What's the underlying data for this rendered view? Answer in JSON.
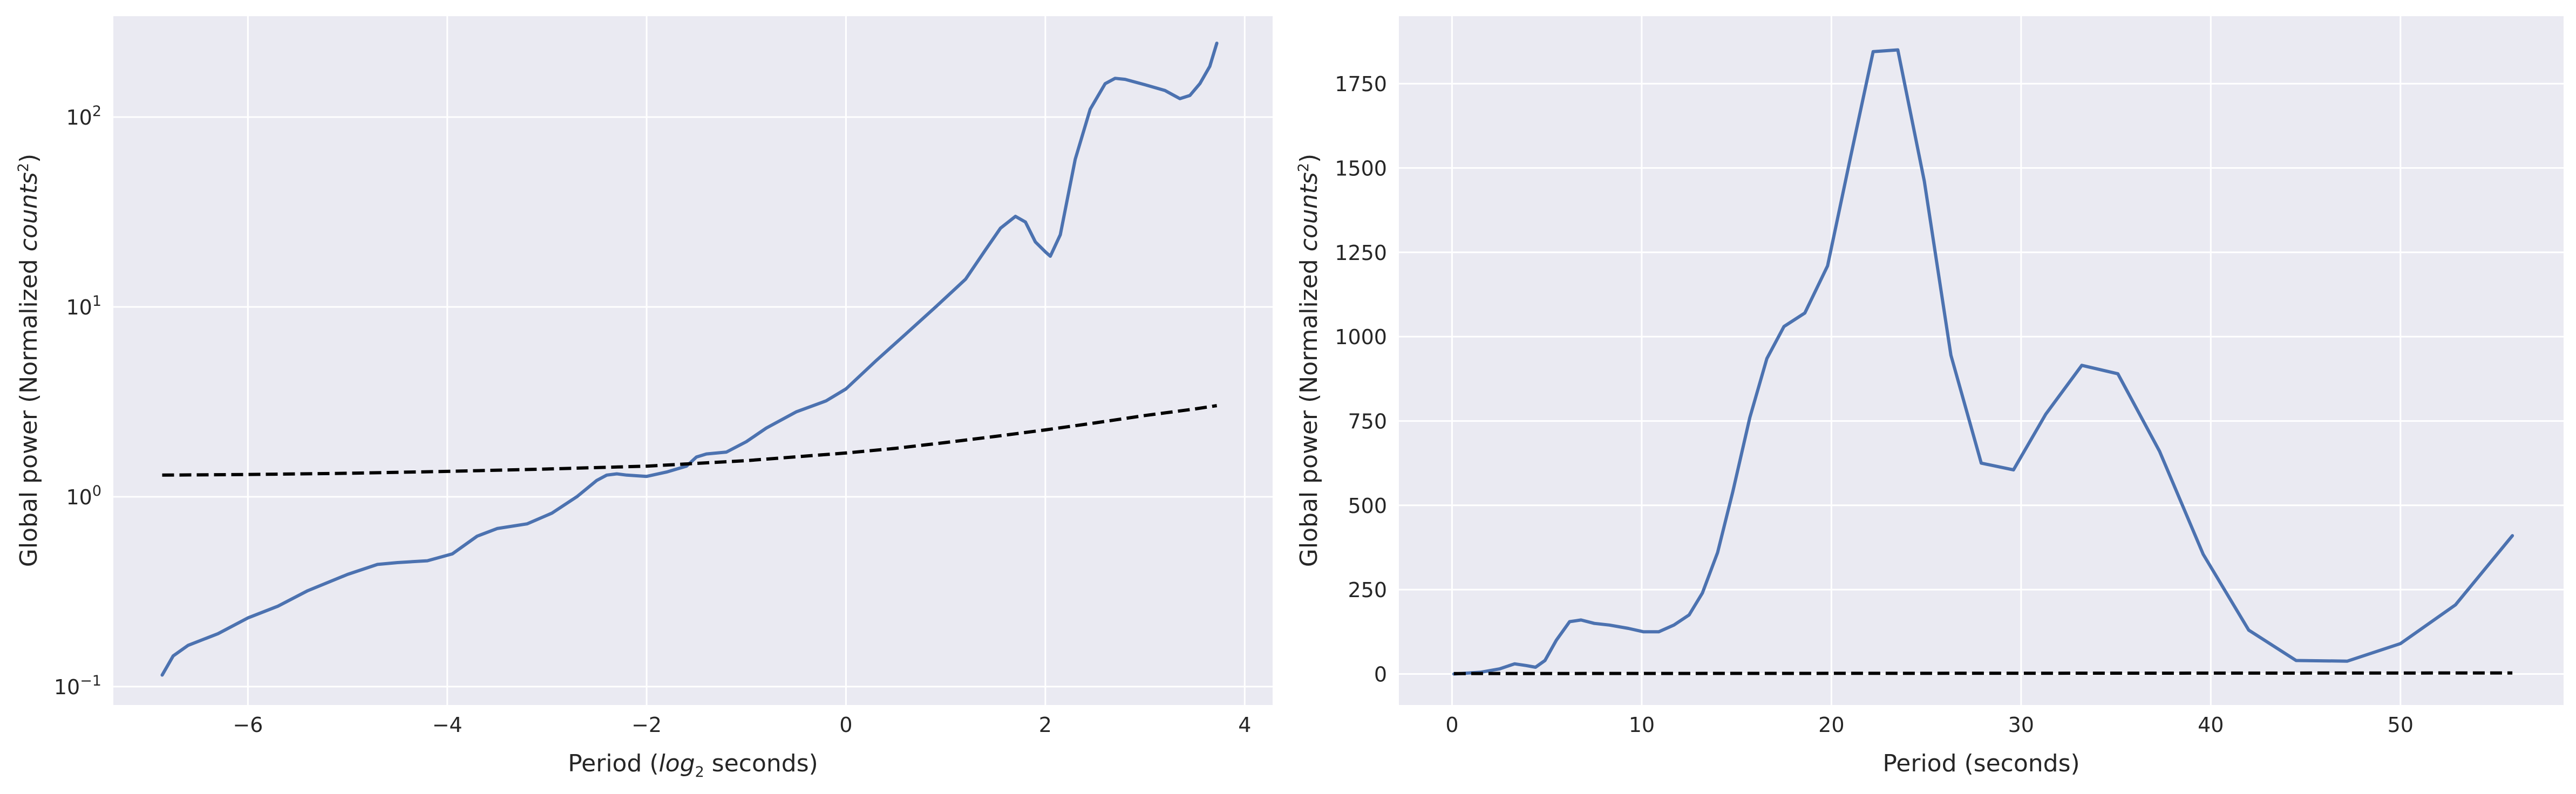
{
  "chart_data": [
    {
      "type": "line",
      "title": "",
      "xlabel": "Period (log2 seconds)",
      "xlabel_parts": {
        "pre": "Period (",
        "math": "log",
        "sub": "2",
        "post": " seconds)"
      },
      "ylabel": "Global power (Normalized counts²)",
      "ylabel_parts": {
        "pre": "Global power (Normalized ",
        "math": "counts",
        "sup": "2",
        "post": ")"
      },
      "yscale": "log",
      "xlim": [
        -7.35,
        4.28
      ],
      "ylim": [
        0.08,
        340
      ],
      "xticks": [
        -6,
        -4,
        -2,
        0,
        2,
        4
      ],
      "xtick_labels": [
        "−6",
        "−4",
        "−2",
        "0",
        "2",
        "4"
      ],
      "yticks": [
        0.1,
        1,
        10,
        100
      ],
      "ytick_labels": [
        {
          "base": "10",
          "exp": "−1"
        },
        {
          "base": "10",
          "exp": "0"
        },
        {
          "base": "10",
          "exp": "1"
        },
        {
          "base": "10",
          "exp": "2"
        }
      ],
      "grid": true,
      "background": "#eaeaf2",
      "series": [
        {
          "style": "solid",
          "color": "#4c72b0",
          "x": [
            -6.86,
            -6.75,
            -6.6,
            -6.3,
            -6.0,
            -5.7,
            -5.4,
            -5.0,
            -4.7,
            -4.5,
            -4.2,
            -3.95,
            -3.7,
            -3.5,
            -3.2,
            -2.95,
            -2.7,
            -2.5,
            -2.4,
            -2.3,
            -2.2,
            -2.0,
            -1.8,
            -1.6,
            -1.5,
            -1.4,
            -1.2,
            -1.0,
            -0.8,
            -0.5,
            -0.2,
            0.0,
            0.3,
            0.6,
            0.9,
            1.2,
            1.4,
            1.55,
            1.7,
            1.8,
            1.9,
            2.0,
            2.05,
            2.15,
            2.3,
            2.45,
            2.6,
            2.7,
            2.8,
            3.0,
            3.2,
            3.35,
            3.45,
            3.55,
            3.65,
            3.72
          ],
          "y": [
            0.115,
            0.145,
            0.165,
            0.19,
            0.23,
            0.265,
            0.32,
            0.39,
            0.44,
            0.45,
            0.46,
            0.5,
            0.62,
            0.68,
            0.72,
            0.82,
            1.0,
            1.22,
            1.3,
            1.32,
            1.3,
            1.28,
            1.35,
            1.45,
            1.62,
            1.68,
            1.72,
            1.95,
            2.3,
            2.8,
            3.2,
            3.7,
            5.2,
            7.2,
            10.0,
            14.0,
            20.0,
            26.0,
            30.0,
            28.0,
            22.0,
            19.5,
            18.5,
            24.0,
            60.0,
            110.0,
            150.0,
            160.0,
            158.0,
            148.0,
            138.0,
            125.0,
            130.0,
            150.0,
            185.0,
            245.0
          ]
        },
        {
          "style": "dashed",
          "color": "#000000",
          "x": [
            -6.86,
            -6.0,
            -5.0,
            -4.0,
            -3.0,
            -2.0,
            -1.0,
            0.0,
            0.5,
            1.0,
            1.5,
            2.0,
            2.5,
            3.0,
            3.5,
            3.72
          ],
          "y": [
            1.3,
            1.31,
            1.33,
            1.36,
            1.4,
            1.45,
            1.55,
            1.7,
            1.8,
            1.93,
            2.08,
            2.25,
            2.45,
            2.68,
            2.9,
            3.02
          ]
        }
      ]
    },
    {
      "type": "line",
      "title": "",
      "xlabel": "Period (seconds)",
      "ylabel": "Global power (Normalized counts²)",
      "ylabel_parts": {
        "pre": "Global power (Normalized ",
        "math": "counts",
        "sup": "2",
        "post": ")"
      },
      "yscale": "linear",
      "xlim": [
        -2.8,
        58.6
      ],
      "ylim": [
        -92,
        1950
      ],
      "xticks": [
        0,
        10,
        20,
        30,
        40,
        50
      ],
      "xtick_labels": [
        "0",
        "10",
        "20",
        "30",
        "40",
        "50"
      ],
      "yticks": [
        0,
        250,
        500,
        750,
        1000,
        1250,
        1500,
        1750
      ],
      "ytick_labels": [
        "0",
        "250",
        "500",
        "750",
        "1000",
        "1250",
        "1500",
        "1750"
      ],
      "grid": true,
      "background": "#eaeaf2",
      "series": [
        {
          "style": "solid",
          "color": "#4c72b0",
          "x": [
            0.1,
            1.5,
            2.5,
            3.3,
            3.9,
            4.4,
            4.9,
            5.5,
            6.2,
            6.8,
            7.5,
            8.3,
            9.3,
            10.1,
            10.9,
            11.7,
            12.5,
            13.2,
            14.0,
            14.8,
            15.7,
            16.6,
            17.5,
            18.6,
            19.8,
            21.0,
            22.2,
            23.5,
            24.9,
            26.3,
            27.9,
            29.6,
            31.3,
            33.2,
            35.1,
            37.3,
            39.6,
            42.0,
            44.5,
            47.2,
            50.0,
            52.9,
            55.9
          ],
          "y": [
            0,
            5,
            15,
            30,
            25,
            20,
            40,
            100,
            155,
            160,
            150,
            145,
            135,
            125,
            125,
            145,
            175,
            240,
            360,
            540,
            760,
            935,
            1030,
            1070,
            1210,
            1530,
            1845,
            1850,
            1460,
            945,
            625,
            605,
            770,
            915,
            890,
            660,
            355,
            130,
            40,
            38,
            90,
            205,
            410
          ]
        },
        {
          "style": "dashed",
          "color": "#000000",
          "x": [
            0.1,
            55.9
          ],
          "y": [
            1.3,
            3.0
          ]
        }
      ]
    }
  ]
}
